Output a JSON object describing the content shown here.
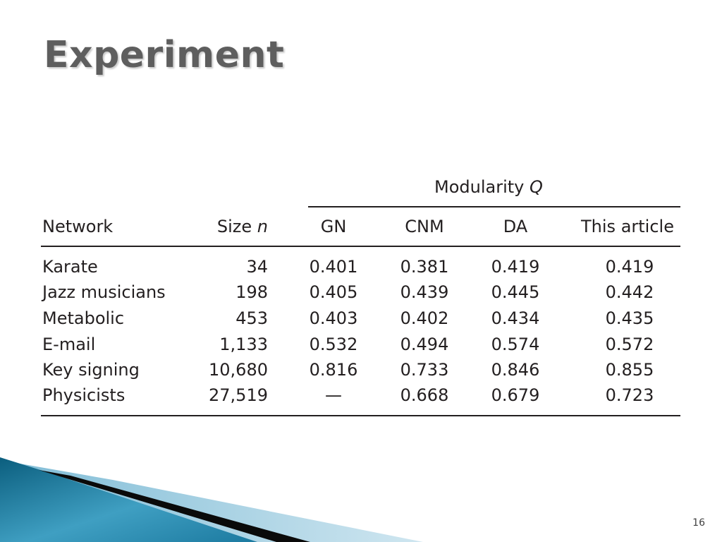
{
  "slide": {
    "title": "Experiment",
    "page_number": "16"
  },
  "table": {
    "group_header": {
      "label": "Modularity ",
      "label_italic": "Q"
    },
    "columns": {
      "network": "Network",
      "size_label": "Size ",
      "size_italic": "n",
      "gn": "GN",
      "cnm": "CNM",
      "da": "DA",
      "this_article": "This article"
    },
    "rows": [
      {
        "network": "Karate",
        "size": "34",
        "gn": "0.401",
        "cnm": "0.381",
        "da": "0.419",
        "this_article": "0.419"
      },
      {
        "network": "Jazz musicians",
        "size": "198",
        "gn": "0.405",
        "cnm": "0.439",
        "da": "0.445",
        "this_article": "0.442"
      },
      {
        "network": "Metabolic",
        "size": "453",
        "gn": "0.403",
        "cnm": "0.402",
        "da": "0.434",
        "this_article": "0.435"
      },
      {
        "network": "E-mail",
        "size": "1,133",
        "gn": "0.532",
        "cnm": "0.494",
        "da": "0.574",
        "this_article": "0.572"
      },
      {
        "network": "Key signing",
        "size": "10,680",
        "gn": "0.816",
        "cnm": "0.733",
        "da": "0.846",
        "this_article": "0.855"
      },
      {
        "network": "Physicists",
        "size": "27,519",
        "gn": "—",
        "cnm": "0.668",
        "da": "0.679",
        "this_article": "0.723"
      }
    ]
  },
  "colors": {
    "title": "#5e5e5e",
    "text": "#231f20",
    "decor_dark_teal": "#0b5e7e",
    "decor_light_blue": "#a8d3e6",
    "decor_black": "#0a0a0a"
  }
}
